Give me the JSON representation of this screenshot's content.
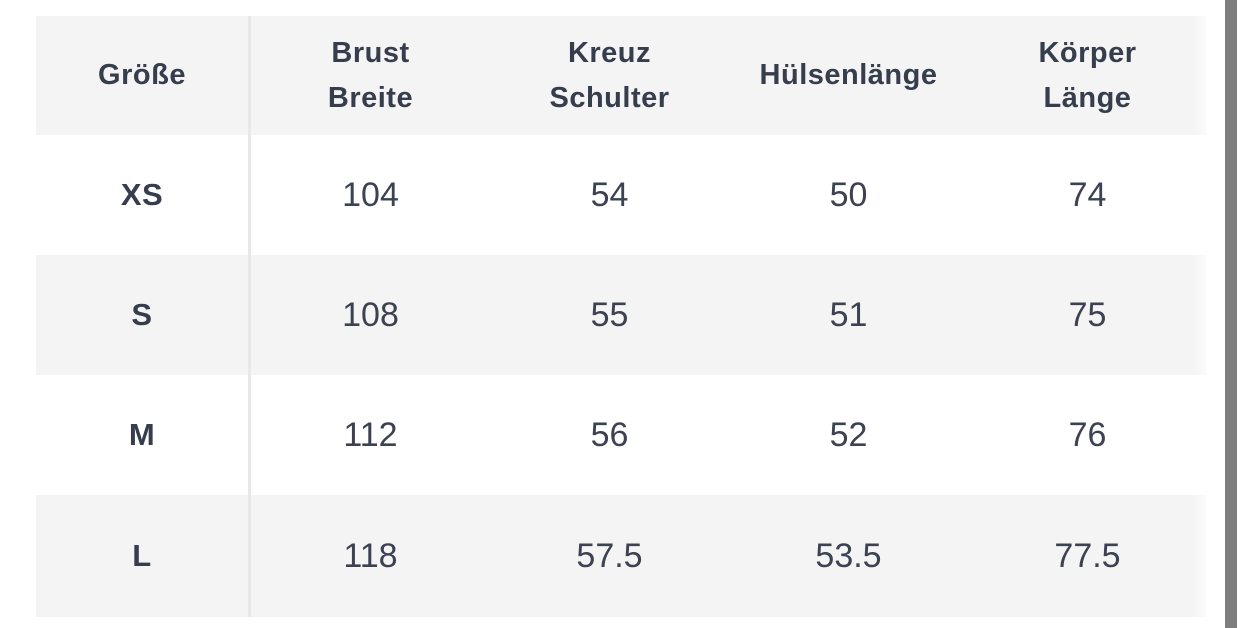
{
  "table": {
    "header": [
      "Größe",
      "Brust\nBreite",
      "Kreuz\nSchulter",
      "Hülsenlänge",
      "Körper\nLänge"
    ],
    "rows": [
      {
        "size": "XS",
        "values": [
          "104",
          "54",
          "50",
          "74"
        ]
      },
      {
        "size": "S",
        "values": [
          "108",
          "55",
          "51",
          "75"
        ]
      },
      {
        "size": "M",
        "values": [
          "112",
          "56",
          "52",
          "76"
        ]
      },
      {
        "size": "L",
        "values": [
          "118",
          "57.5",
          "53.5",
          "77.5"
        ]
      }
    ]
  },
  "chart_data": {
    "type": "table",
    "columns": [
      "Größe",
      "Brust Breite",
      "Kreuz Schulter",
      "Hülsenlänge",
      "Körper Länge"
    ],
    "rows": [
      [
        "XS",
        104,
        54,
        50,
        74
      ],
      [
        "S",
        108,
        55,
        51,
        75
      ],
      [
        "M",
        112,
        56,
        52,
        76
      ],
      [
        "L",
        118,
        57.5,
        53.5,
        77.5
      ]
    ]
  },
  "colors": {
    "background": "#ffffff",
    "stripe_gray": "#f4f4f4",
    "divider": "#e8e8e8",
    "header_text": "#363d4d",
    "value_text": "#3c4251",
    "scrollbar": "#7e7e7e"
  }
}
